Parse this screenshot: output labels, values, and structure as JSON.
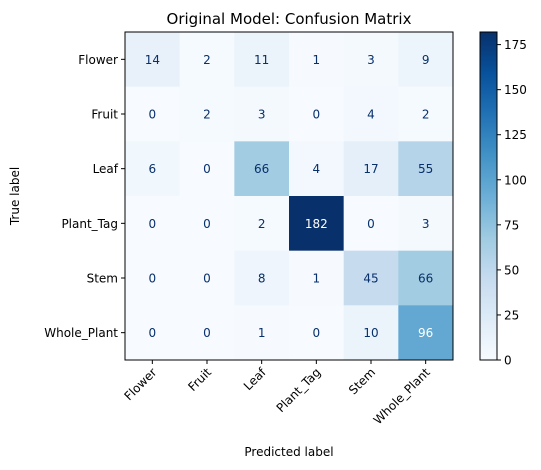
{
  "chart_data": {
    "type": "heatmap",
    "title": "Original Model: Confusion Matrix",
    "xlabel": "Predicted label",
    "ylabel": "True label",
    "x_categories": [
      "Flower",
      "Fruit",
      "Leaf",
      "Plant_Tag",
      "Stem",
      "Whole_Plant"
    ],
    "y_categories": [
      "Flower",
      "Fruit",
      "Leaf",
      "Plant_Tag",
      "Stem",
      "Whole_Plant"
    ],
    "values": [
      [
        14,
        2,
        11,
        1,
        3,
        9
      ],
      [
        0,
        2,
        3,
        0,
        4,
        2
      ],
      [
        6,
        0,
        66,
        4,
        17,
        55
      ],
      [
        0,
        0,
        2,
        182,
        0,
        3
      ],
      [
        0,
        0,
        8,
        1,
        45,
        66
      ],
      [
        0,
        0,
        1,
        0,
        10,
        96
      ]
    ],
    "colormap": "Blues",
    "colorbar": {
      "min": 0,
      "max": 182,
      "ticks": [
        0,
        25,
        50,
        75,
        100,
        125,
        150,
        175
      ]
    },
    "x_tick_rotation_deg": 45,
    "grid": false
  }
}
